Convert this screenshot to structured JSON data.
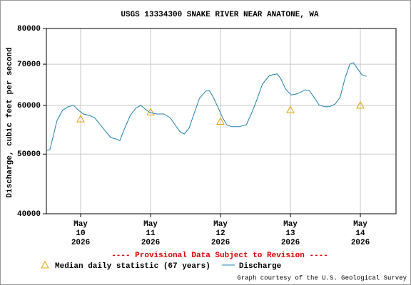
{
  "chart_data": {
    "type": "line",
    "title": "USGS 13334300 SNAKE RIVER NEAR ANATONE, WA",
    "y_label": "Discharge, cubic feet per second",
    "annotation": "---- Provisional Data Subject to Revision ----",
    "credit": "Graph courtesy of the U.S. Geological Survey",
    "ylog": true,
    "grid": true,
    "legend": "bottom",
    "xlim": [
      9.51,
      14.51
    ],
    "xticks": [
      {
        "value": 10,
        "label": [
          "May",
          "10",
          "2026"
        ]
      },
      {
        "value": 11,
        "label": [
          "May",
          "11",
          "2026"
        ]
      },
      {
        "value": 12,
        "label": [
          "May",
          "12",
          "2026"
        ]
      },
      {
        "value": 13,
        "label": [
          "May",
          "13",
          "2026"
        ]
      },
      {
        "value": 14,
        "label": [
          "May",
          "14",
          "2026"
        ]
      }
    ],
    "ylim": [
      40000,
      80000
    ],
    "yticks": [
      40000,
      50000,
      60000,
      70000,
      80000
    ],
    "series": [
      {
        "name": "Median daily statistic (67 years)",
        "color": "#e8a000",
        "marker": "triangle",
        "x": [
          10,
          11,
          12,
          13,
          14
        ],
        "values": [
          57000,
          58500,
          56500,
          59000,
          60000
        ]
      },
      {
        "name": "Discharge",
        "color": "#1f7fae",
        "marker": "line",
        "x": [
          9.51,
          9.56,
          9.61,
          9.66,
          9.74,
          9.82,
          9.9,
          9.97,
          10.04,
          10.12,
          10.2,
          10.28,
          10.36,
          10.43,
          10.51,
          10.56,
          10.63,
          10.71,
          10.79,
          10.86,
          10.92,
          10.99,
          11.09,
          11.19,
          11.28,
          11.35,
          11.42,
          11.48,
          11.55,
          11.62,
          11.7,
          11.79,
          11.84,
          11.89,
          11.96,
          12.03,
          12.09,
          12.16,
          12.27,
          12.37,
          12.44,
          12.52,
          12.6,
          12.7,
          12.81,
          12.86,
          12.93,
          13.01,
          13.08,
          13.13,
          13.21,
          13.27,
          13.34,
          13.41,
          13.49,
          13.56,
          13.64,
          13.71,
          13.78,
          13.85,
          13.9,
          13.95,
          14.02,
          14.09
        ],
        "values": [
          50700,
          50800,
          53600,
          56600,
          58900,
          59700,
          60000,
          58900,
          58100,
          57800,
          57300,
          55800,
          54400,
          53200,
          52900,
          52600,
          55100,
          57800,
          59400,
          60000,
          59200,
          58400,
          58100,
          58100,
          57300,
          55800,
          54400,
          53900,
          55100,
          58100,
          61600,
          63300,
          63400,
          62100,
          59700,
          57300,
          55800,
          55400,
          55400,
          55800,
          58100,
          61300,
          65000,
          67100,
          67500,
          66400,
          63800,
          62400,
          62600,
          62900,
          63600,
          63400,
          61800,
          60100,
          59700,
          59700,
          60300,
          61800,
          66400,
          70000,
          70400,
          69100,
          67300,
          66900
        ]
      }
    ]
  }
}
